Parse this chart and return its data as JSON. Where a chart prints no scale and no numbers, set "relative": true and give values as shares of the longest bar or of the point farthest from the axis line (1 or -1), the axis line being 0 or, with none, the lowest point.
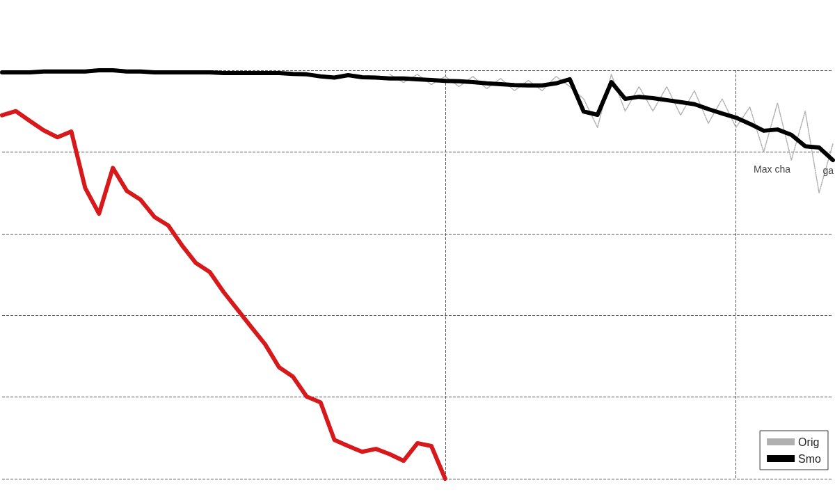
{
  "chart_data": {
    "type": "line",
    "relative": true,
    "grid": true,
    "legend": "bottom right",
    "marker": "none",
    "categories": [
      null,
      null,
      null,
      null,
      null,
      null,
      null,
      null,
      null,
      null,
      null,
      null,
      null,
      null,
      null,
      null,
      null,
      null,
      null,
      null,
      null,
      null,
      null,
      null,
      null,
      null,
      null,
      null,
      null,
      null,
      null,
      null,
      null,
      null,
      null,
      null,
      null,
      null,
      null,
      null,
      null,
      null,
      null,
      null,
      null,
      null,
      null,
      null,
      null,
      null,
      null,
      null,
      null,
      null,
      null,
      null,
      null,
      null,
      null,
      null,
      null
    ],
    "series": [
      {
        "name": "Orig",
        "color": "#b0b0b0",
        "line_style": "dotted",
        "values": [
          null,
          null,
          null,
          null,
          null,
          null,
          null,
          null,
          null,
          null,
          null,
          null,
          null,
          null,
          null,
          null,
          null,
          null,
          null,
          null,
          null,
          null,
          null,
          null,
          null,
          null,
          null,
          null,
          0.99,
          0.97,
          0.99,
          0.965,
          0.985,
          0.96,
          0.985,
          0.955,
          0.98,
          0.95,
          0.975,
          0.95,
          0.985,
          0.96,
          0.93,
          0.86,
          0.99,
          0.9,
          0.96,
          0.9,
          0.96,
          0.89,
          0.95,
          0.87,
          0.93,
          0.86,
          0.91,
          0.8,
          0.92,
          0.78,
          0.9,
          0.7,
          0.82
        ]
      },
      {
        "name": "Smo",
        "color": "#000000",
        "line_style": "solid",
        "values": [
          0.995,
          0.995,
          0.995,
          0.997,
          0.997,
          0.997,
          0.997,
          1.0,
          1.0,
          0.997,
          0.997,
          0.995,
          0.995,
          0.995,
          0.995,
          0.995,
          0.993,
          0.993,
          0.993,
          0.993,
          0.993,
          0.991,
          0.99,
          0.985,
          0.982,
          0.988,
          0.983,
          0.982,
          0.98,
          0.98,
          0.978,
          0.976,
          0.974,
          0.973,
          0.971,
          0.968,
          0.966,
          0.964,
          0.963,
          0.963,
          0.968,
          0.978,
          0.899,
          0.891,
          0.971,
          0.93,
          0.935,
          0.932,
          0.927,
          0.922,
          0.917,
          0.905,
          0.894,
          0.884,
          0.869,
          0.852,
          0.855,
          0.842,
          0.814,
          0.811,
          0.78
        ]
      },
      {
        "color": "#d7191c",
        "line_style": "solid",
        "values": [
          0.89,
          0.9,
          0.876,
          0.853,
          0.836,
          0.85,
          0.712,
          0.649,
          0.761,
          0.705,
          0.683,
          0.641,
          0.62,
          0.571,
          0.528,
          0.506,
          0.457,
          0.414,
          0.371,
          0.329,
          0.273,
          0.25,
          0.201,
          0.187,
          0.095,
          0.08,
          0.066,
          0.073,
          0.06,
          0.044,
          0.087,
          0.08,
          0,
          null,
          null,
          null,
          null,
          null,
          null,
          null,
          null,
          null,
          null,
          null,
          null,
          null,
          null,
          null,
          null,
          null,
          null,
          null,
          null,
          null,
          null,
          null,
          null,
          null,
          null,
          null,
          null
        ]
      }
    ],
    "annotations": [
      "Max cha",
      "ga"
    ]
  }
}
